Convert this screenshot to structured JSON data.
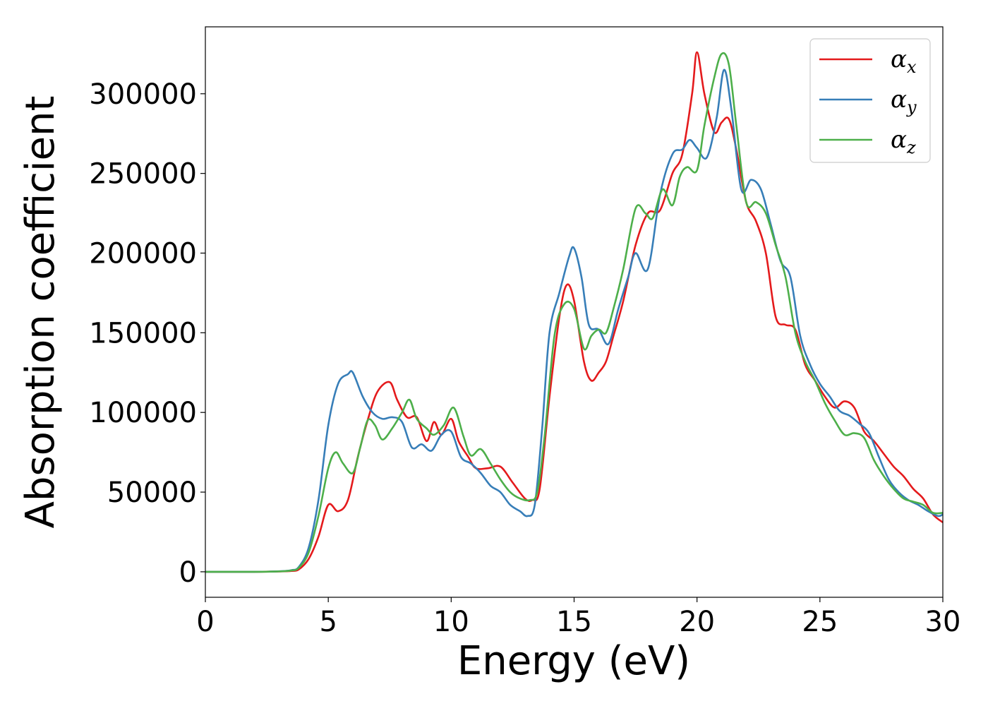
{
  "chart_data": {
    "type": "line",
    "title": "",
    "xlabel": "Energy (eV)",
    "ylabel": "Absorption coefficient",
    "xlim": [
      0,
      30
    ],
    "ylim": [
      -16000,
      342000
    ],
    "xticks": [
      0,
      5,
      10,
      15,
      20,
      25,
      30
    ],
    "yticks": [
      0,
      50000,
      100000,
      150000,
      200000,
      250000,
      300000
    ],
    "grid": false,
    "legend_position": "top-right",
    "series": [
      {
        "name": "α",
        "subscript": "x",
        "color": "#e41a1c",
        "x": [
          0,
          2,
          3,
          3.5,
          3.8,
          4.2,
          4.6,
          5.0,
          5.4,
          5.8,
          6.2,
          6.6,
          7.0,
          7.5,
          7.8,
          8.2,
          8.6,
          9.0,
          9.3,
          9.6,
          10.0,
          10.3,
          10.7,
          11.0,
          11.5,
          12.0,
          12.5,
          13.0,
          13.3,
          13.6,
          14.0,
          14.4,
          14.7,
          15.0,
          15.4,
          15.7,
          16.0,
          16.3,
          16.6,
          17.0,
          17.5,
          18.0,
          18.5,
          19.0,
          19.4,
          19.8,
          20.0,
          20.3,
          20.7,
          21.0,
          21.3,
          21.6,
          22.0,
          22.4,
          22.8,
          23.2,
          23.6,
          24.0,
          24.4,
          24.8,
          25.2,
          25.6,
          26.0,
          26.4,
          26.8,
          27.2,
          27.6,
          28.0,
          28.4,
          28.8,
          29.2,
          29.6,
          30.0
        ],
        "values": [
          0,
          0,
          200,
          500,
          1500,
          8000,
          22000,
          42000,
          38000,
          45000,
          72000,
          95000,
          113000,
          119000,
          108000,
          97000,
          97000,
          82000,
          94000,
          86000,
          96000,
          82000,
          72000,
          65000,
          65000,
          66000,
          56000,
          46000,
          45000,
          52000,
          110000,
          160000,
          180000,
          170000,
          132000,
          120000,
          125000,
          132000,
          148000,
          170000,
          205000,
          225000,
          227000,
          250000,
          262000,
          300000,
          326000,
          300000,
          276000,
          282000,
          284000,
          265000,
          232000,
          220000,
          200000,
          160000,
          155000,
          152000,
          130000,
          120000,
          110000,
          103000,
          107000,
          103000,
          88000,
          82000,
          74000,
          66000,
          60000,
          52000,
          46000,
          36000,
          31000
        ]
      },
      {
        "name": "α",
        "subscript": "y",
        "color": "#377eb8",
        "x": [
          0,
          2,
          3,
          3.5,
          3.8,
          4.2,
          4.6,
          5.0,
          5.4,
          5.8,
          6.0,
          6.4,
          6.8,
          7.2,
          7.6,
          8.0,
          8.4,
          8.8,
          9.2,
          9.6,
          10.0,
          10.4,
          10.8,
          11.2,
          11.6,
          12.0,
          12.4,
          12.8,
          13.1,
          13.4,
          13.7,
          14.0,
          14.4,
          14.8,
          15.0,
          15.3,
          15.6,
          16.0,
          16.4,
          16.8,
          17.2,
          17.5,
          18.0,
          18.5,
          19.0,
          19.4,
          19.7,
          20.0,
          20.4,
          20.8,
          21.1,
          21.4,
          21.8,
          22.2,
          22.6,
          23.0,
          23.4,
          23.8,
          24.2,
          24.6,
          25.0,
          25.4,
          25.8,
          26.2,
          26.6,
          27.0,
          27.4,
          27.8,
          28.2,
          28.6,
          29.0,
          29.4,
          29.8,
          30.0
        ],
        "values": [
          0,
          0,
          300,
          1000,
          3000,
          15000,
          45000,
          92000,
          118000,
          124000,
          125000,
          110000,
          100000,
          96000,
          97000,
          94000,
          78000,
          80000,
          76000,
          86000,
          88000,
          72000,
          68000,
          62000,
          54000,
          50000,
          42000,
          38000,
          35000,
          42000,
          90000,
          150000,
          175000,
          198000,
          203000,
          185000,
          155000,
          152000,
          143000,
          165000,
          185000,
          200000,
          190000,
          237000,
          262000,
          265000,
          271000,
          266000,
          260000,
          285000,
          315000,
          290000,
          240000,
          246000,
          240000,
          218000,
          195000,
          185000,
          148000,
          130000,
          118000,
          110000,
          101000,
          98000,
          93000,
          87000,
          72000,
          58000,
          50000,
          45000,
          42000,
          38000,
          35000,
          36000
        ]
      },
      {
        "name": "α",
        "subscript": "z",
        "color": "#4daf4a",
        "x": [
          0,
          2,
          3,
          3.5,
          3.8,
          4.2,
          4.6,
          5.0,
          5.3,
          5.6,
          6.0,
          6.3,
          6.6,
          6.9,
          7.2,
          7.6,
          8.0,
          8.3,
          8.6,
          9.0,
          9.3,
          9.7,
          10.1,
          10.5,
          10.8,
          11.2,
          11.6,
          12.0,
          12.4,
          12.8,
          13.2,
          13.5,
          13.8,
          14.2,
          14.6,
          15.0,
          15.4,
          15.7,
          16.0,
          16.3,
          16.6,
          17.0,
          17.5,
          17.9,
          18.2,
          18.6,
          19.0,
          19.3,
          19.6,
          20.0,
          20.3,
          20.7,
          21.0,
          21.3,
          21.6,
          22.0,
          22.4,
          22.8,
          23.2,
          23.6,
          24.0,
          24.4,
          24.8,
          25.2,
          25.6,
          26.0,
          26.4,
          26.8,
          27.2,
          27.6,
          28.0,
          28.4,
          28.8,
          29.2,
          29.6,
          30.0
        ],
        "values": [
          0,
          0,
          250,
          800,
          2500,
          12000,
          35000,
          65000,
          75000,
          68000,
          62000,
          78000,
          95000,
          92000,
          83000,
          90000,
          100000,
          108000,
          96000,
          90000,
          86000,
          92000,
          103000,
          85000,
          73000,
          77000,
          68000,
          58000,
          50000,
          46000,
          45000,
          50000,
          85000,
          148000,
          168000,
          165000,
          140000,
          148000,
          152000,
          150000,
          165000,
          190000,
          228000,
          225000,
          222000,
          240000,
          230000,
          248000,
          254000,
          252000,
          280000,
          310000,
          325000,
          318000,
          280000,
          232000,
          232000,
          225000,
          205000,
          185000,
          150000,
          132000,
          120000,
          106000,
          95000,
          86000,
          87000,
          84000,
          70000,
          60000,
          52000,
          46000,
          44000,
          42000,
          37000,
          37000
        ]
      }
    ]
  }
}
